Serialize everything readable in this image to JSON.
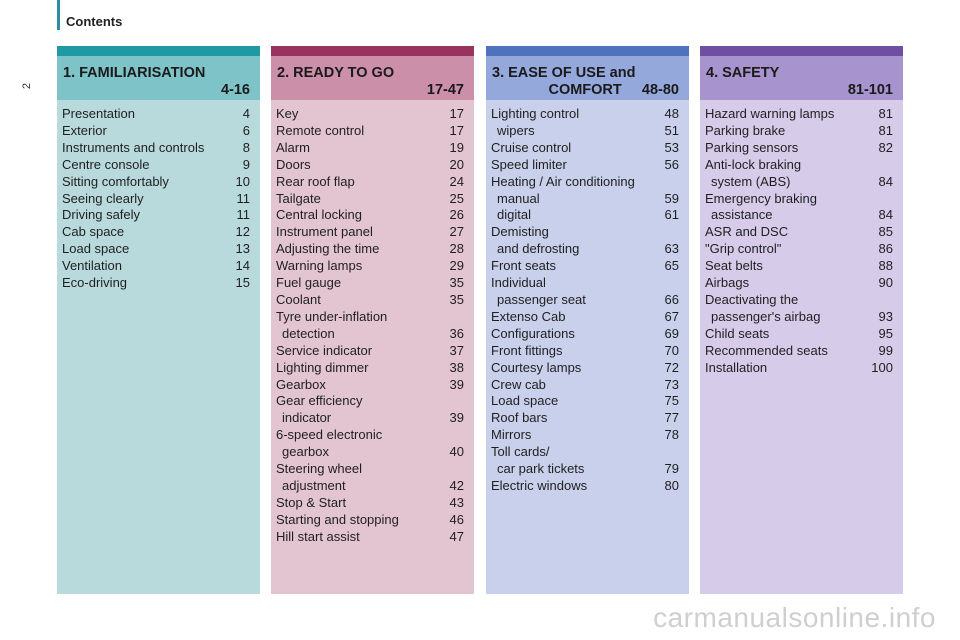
{
  "header": {
    "title": "Contents",
    "page_number": "2"
  },
  "accent_colors": [
    "#1d9aa4",
    "#98335f",
    "#4f72bd",
    "#6f4fa0"
  ],
  "watermark": "carmanualsonline.info",
  "columns": [
    {
      "title_line1": "1. FAMILIARISATION",
      "title_line2": "4-16",
      "entries": [
        {
          "label": "Presentation",
          "page": "4"
        },
        {
          "label": "Exterior",
          "page": "6"
        },
        {
          "label": "Instruments and controls",
          "page": "8"
        },
        {
          "label": "Centre console",
          "page": "9"
        },
        {
          "label": "Sitting comfortably",
          "page": "10"
        },
        {
          "label": "Seeing clearly",
          "page": "11"
        },
        {
          "label": "Driving safely",
          "page": "11"
        },
        {
          "label": "Cab space",
          "page": "12"
        },
        {
          "label": "Load space",
          "page": "13"
        },
        {
          "label": "Ventilation",
          "page": "14"
        },
        {
          "label": "Eco-driving",
          "page": "15"
        }
      ]
    },
    {
      "title_line1": "2. READY TO GO",
      "title_line2": "17-47",
      "entries": [
        {
          "label": "Key",
          "page": "17"
        },
        {
          "label": "Remote control",
          "page": "17"
        },
        {
          "label": "Alarm",
          "page": "19"
        },
        {
          "label": "Doors",
          "page": "20"
        },
        {
          "label": "Rear roof flap",
          "page": "24"
        },
        {
          "label": "Tailgate",
          "page": "25"
        },
        {
          "label": "Central locking",
          "page": "26"
        },
        {
          "label": "Instrument panel",
          "page": "27"
        },
        {
          "label": "Adjusting the time",
          "page": "28"
        },
        {
          "label": "Warning lamps",
          "page": "29"
        },
        {
          "label": "Fuel gauge",
          "page": "35"
        },
        {
          "label": "Coolant",
          "page": "35"
        },
        {
          "label": "Tyre under-inflation",
          "page": ""
        },
        {
          "label": "detection",
          "page": "36",
          "indent": true
        },
        {
          "label": "Service indicator",
          "page": "37"
        },
        {
          "label": "Lighting dimmer",
          "page": "38"
        },
        {
          "label": "Gearbox",
          "page": "39"
        },
        {
          "label": "Gear efficiency",
          "page": ""
        },
        {
          "label": "indicator",
          "page": "39",
          "indent": true
        },
        {
          "label": "6-speed electronic",
          "page": ""
        },
        {
          "label": "gearbox",
          "page": "40",
          "indent": true
        },
        {
          "label": "Steering wheel",
          "page": ""
        },
        {
          "label": "adjustment",
          "page": "42",
          "indent": true
        },
        {
          "label": "Stop & Start",
          "page": "43"
        },
        {
          "label": "Starting and stopping",
          "page": "46"
        },
        {
          "label": "Hill start assist",
          "page": "47"
        }
      ]
    },
    {
      "title_line1": "3. EASE OF USE and",
      "title_line2": "COMFORT     48-80",
      "entries": [
        {
          "label": "Lighting control",
          "page": "48"
        },
        {
          "label": "wipers",
          "page": "51",
          "indent": true
        },
        {
          "label": "Cruise control",
          "page": "53"
        },
        {
          "label": "Speed limiter",
          "page": "56"
        },
        {
          "label": "Heating / Air conditioning",
          "page": ""
        },
        {
          "label": "manual",
          "page": "59",
          "indent": true
        },
        {
          "label": "digital",
          "page": "61",
          "indent": true
        },
        {
          "label": "Demisting",
          "page": ""
        },
        {
          "label": "and defrosting",
          "page": "63",
          "indent": true
        },
        {
          "label": "Front seats",
          "page": "65"
        },
        {
          "label": "Individual",
          "page": ""
        },
        {
          "label": "passenger seat",
          "page": "66",
          "indent": true
        },
        {
          "label": "Extenso Cab",
          "page": "67"
        },
        {
          "label": "Configurations",
          "page": "69"
        },
        {
          "label": "Front fittings",
          "page": "70"
        },
        {
          "label": "Courtesy lamps",
          "page": "72"
        },
        {
          "label": "Crew cab",
          "page": "73"
        },
        {
          "label": "Load space",
          "page": "75"
        },
        {
          "label": "Roof bars",
          "page": "77"
        },
        {
          "label": "Mirrors",
          "page": "78"
        },
        {
          "label": "Toll cards/",
          "page": ""
        },
        {
          "label": "car park tickets",
          "page": "79",
          "indent": true
        },
        {
          "label": "Electric windows",
          "page": "80"
        }
      ]
    },
    {
      "title_line1": "4. SAFETY",
      "title_line2": "81-101",
      "entries": [
        {
          "label": "Hazard warning lamps",
          "page": "81"
        },
        {
          "label": "Parking brake",
          "page": "81"
        },
        {
          "label": "Parking sensors",
          "page": "82"
        },
        {
          "label": "Anti-lock braking",
          "page": ""
        },
        {
          "label": "system (ABS)",
          "page": "84",
          "indent": true
        },
        {
          "label": "Emergency braking",
          "page": ""
        },
        {
          "label": "assistance",
          "page": "84",
          "indent": true
        },
        {
          "label": "ASR and DSC",
          "page": "85"
        },
        {
          "label": "\"Grip control\"",
          "page": "86"
        },
        {
          "label": "Seat belts",
          "page": "88"
        },
        {
          "label": "Airbags",
          "page": "90"
        },
        {
          "label": "Deactivating the",
          "page": ""
        },
        {
          "label": "passenger's airbag",
          "page": "93",
          "indent": true
        },
        {
          "label": "Child seats",
          "page": "95"
        },
        {
          "label": "Recommended seats",
          "page": "99"
        },
        {
          "label": "Installation",
          "page": "100"
        }
      ]
    }
  ]
}
